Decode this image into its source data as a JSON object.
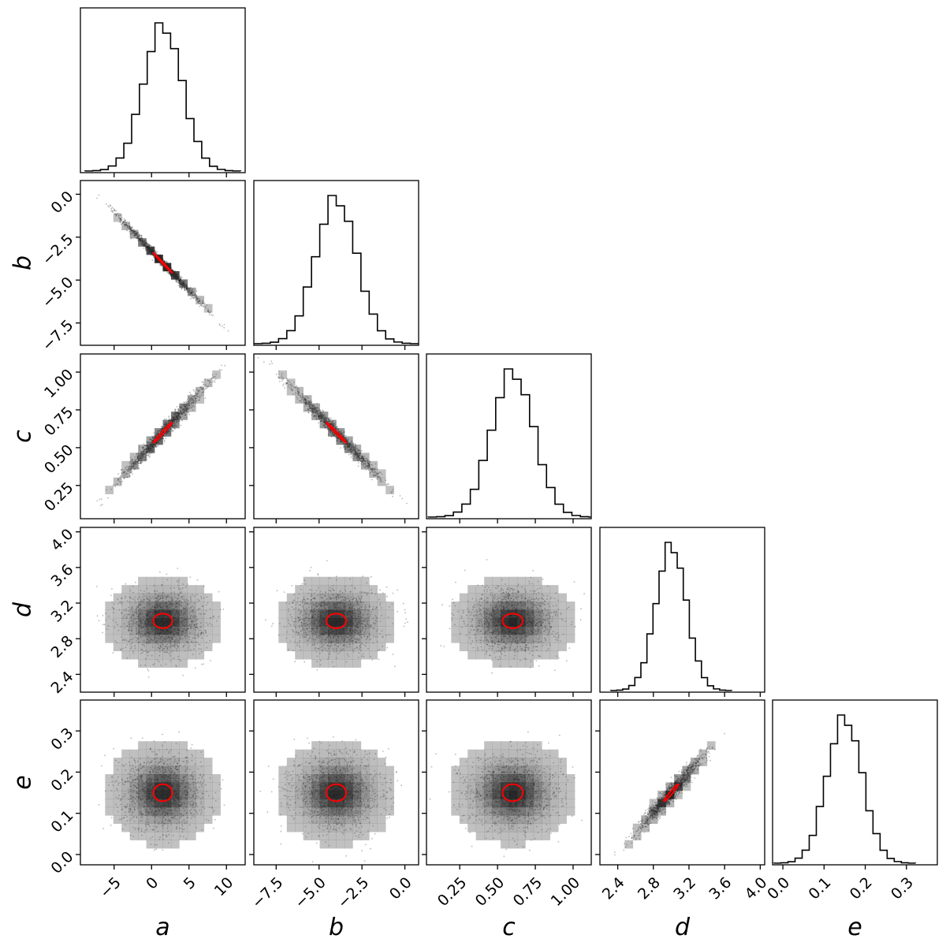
{
  "chart_data": {
    "type": "corner",
    "parameters": [
      "a",
      "b",
      "c",
      "d",
      "e"
    ],
    "axes": {
      "a": {
        "label": "a",
        "range": [
          -9.5,
          12.5
        ],
        "ticks": [
          -5,
          0,
          5,
          10
        ],
        "tick_labels": [
          "−5",
          "0",
          "5",
          "10"
        ]
      },
      "b": {
        "label": "b",
        "range": [
          -8.8,
          0.8
        ],
        "ticks": [
          -7.5,
          -5.0,
          -2.5,
          0.0
        ],
        "tick_labels": [
          "−7.5",
          "−5.0",
          "−2.5",
          "0.0"
        ]
      },
      "c": {
        "label": "c",
        "range": [
          0.03,
          1.12
        ],
        "ticks": [
          0.25,
          0.5,
          0.75,
          1.0
        ],
        "tick_labels": [
          "0.25",
          "0.50",
          "0.75",
          "1.00"
        ]
      },
      "d": {
        "label": "d",
        "range": [
          2.2,
          4.05
        ],
        "ticks": [
          2.4,
          2.8,
          3.2,
          3.6,
          4.0
        ],
        "tick_labels": [
          "2.4",
          "2.8",
          "3.2",
          "3.6",
          "4.0"
        ]
      },
      "e": {
        "label": "e",
        "range": [
          -0.025,
          0.375
        ],
        "ticks": [
          0.0,
          0.1,
          0.2,
          0.3
        ],
        "tick_labels": [
          "0.0",
          "0.1",
          "0.2",
          "0.3"
        ]
      }
    },
    "marginals": {
      "a": {
        "mean": 1.5,
        "std": 2.6
      },
      "b": {
        "mean": -4.0,
        "std": 1.2
      },
      "c": {
        "mean": 0.6,
        "std": 0.14
      },
      "d": {
        "mean": 3.0,
        "std": 0.17
      },
      "e": {
        "mean": 0.15,
        "std": 0.043
      }
    },
    "correlations": {
      "a-b": -0.995,
      "a-c": 0.985,
      "b-c": -0.99,
      "d-e": 0.97
    },
    "histogram_bins": 20,
    "density_color": "#000000",
    "contour_color": "#ff0000",
    "grid": false,
    "legend": false
  }
}
